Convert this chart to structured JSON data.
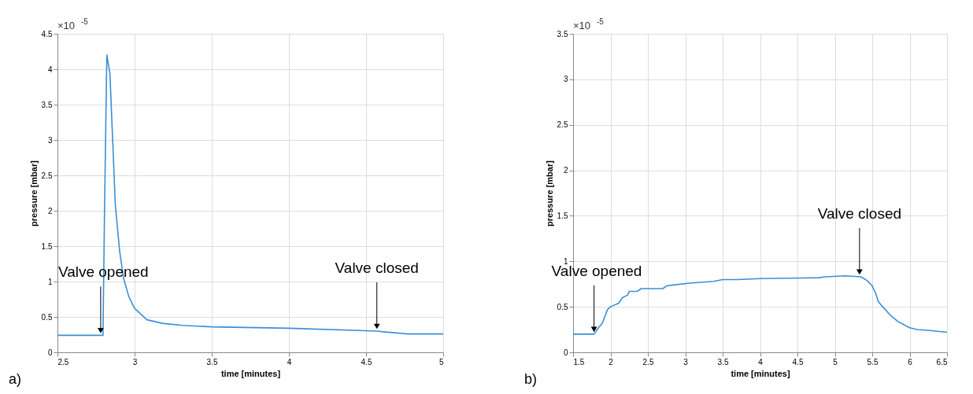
{
  "chart_data": [
    {
      "type": "line",
      "xlabel": "time [minutes]",
      "ylabel": "pressure [mbar]",
      "xlim": [
        2.5,
        5
      ],
      "xticks": [
        2.5,
        3,
        3.5,
        4,
        4.5,
        5
      ],
      "ylim": [
        0,
        4.5
      ],
      "yticks": [
        0,
        0.5,
        1,
        1.5,
        2,
        2.5,
        3,
        3.5,
        4,
        4.5
      ],
      "grid": true,
      "annotations": [
        "×10$^{-5}$",
        "a)",
        {
          "text": "Valve opened",
          "x": 2.78,
          "y": 0.24
        },
        {
          "text": "Valve closed",
          "x": 4.57,
          "y": 0.3
        }
      ],
      "series": [
        {
          "color": "#3a8fd9",
          "x": [
            2.5,
            2.7,
            2.795,
            2.805,
            2.82,
            2.84,
            2.875,
            2.903,
            2.928,
            2.962,
            3.0,
            3.08,
            3.18,
            3.31,
            3.5,
            4.0,
            4.575,
            4.61,
            4.77,
            5.0
          ],
          "values": [
            0.24,
            0.24,
            0.24,
            2.0,
            4.2,
            3.94,
            2.08,
            1.43,
            1.05,
            0.79,
            0.62,
            0.46,
            0.41,
            0.38,
            0.36,
            0.34,
            0.3,
            0.29,
            0.26,
            0.26
          ]
        }
      ]
    },
    {
      "type": "line",
      "xlabel": "time [minutes]",
      "ylabel": "pressure [mbar]",
      "xlim": [
        1.5,
        6.5
      ],
      "xticks": [
        1.5,
        2,
        2.5,
        3,
        3.5,
        4,
        4.5,
        5,
        5.5,
        6,
        6.5
      ],
      "ylim": [
        0,
        3.5
      ],
      "yticks": [
        0,
        0.5,
        1,
        1.5,
        2,
        2.5,
        3,
        3.5
      ],
      "grid": true,
      "annotations": [
        "×10$^{-5}$",
        "b)",
        {
          "text": "Valve opened",
          "x": 1.78,
          "y": 0.2
        },
        {
          "text": "Valve closed",
          "x": 5.33,
          "y": 0.83
        }
      ],
      "series": [
        {
          "color": "#3a8fd9",
          "x": [
            1.5,
            1.78,
            1.84,
            1.89,
            1.96,
            2.0,
            2.11,
            2.16,
            2.23,
            2.25,
            2.36,
            2.41,
            2.7,
            2.75,
            2.84,
            3.06,
            3.38,
            3.5,
            3.7,
            4.0,
            4.79,
            4.87,
            5.14,
            5.35,
            5.43,
            5.5,
            5.55,
            5.58,
            5.64,
            5.74,
            5.84,
            6.0,
            6.1,
            6.27,
            6.5
          ],
          "values": [
            0.2,
            0.2,
            0.27,
            0.32,
            0.47,
            0.5,
            0.54,
            0.6,
            0.63,
            0.67,
            0.67,
            0.7,
            0.7,
            0.73,
            0.74,
            0.76,
            0.78,
            0.8,
            0.8,
            0.81,
            0.82,
            0.83,
            0.84,
            0.83,
            0.79,
            0.73,
            0.64,
            0.56,
            0.5,
            0.41,
            0.34,
            0.27,
            0.25,
            0.24,
            0.22
          ]
        }
      ]
    }
  ]
}
